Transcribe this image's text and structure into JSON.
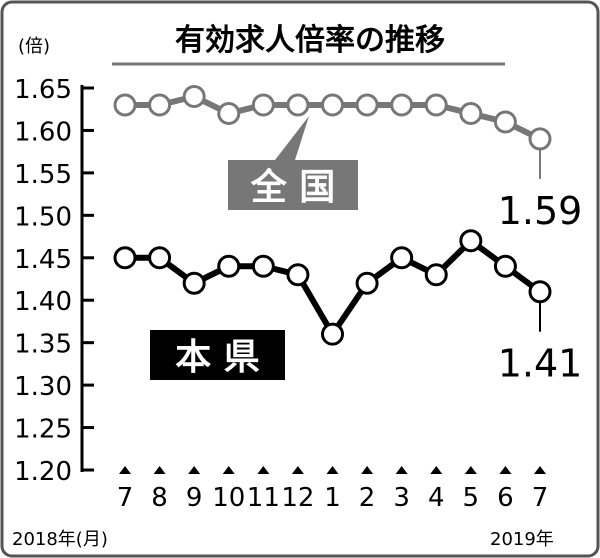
{
  "chart_data": {
    "type": "line",
    "title": "有効求人倍率の推移",
    "ylabel": "(倍)",
    "ylim": [
      1.2,
      1.65
    ],
    "yticks": [
      "1.20",
      "1.25",
      "1.30",
      "1.35",
      "1.40",
      "1.45",
      "1.50",
      "1.55",
      "1.60",
      "1.65"
    ],
    "categories": [
      "7",
      "8",
      "9",
      "10",
      "11",
      "12",
      "1",
      "2",
      "3",
      "4",
      "5",
      "6",
      "7"
    ],
    "xlabel_start": "2018年(月)",
    "xlabel_end": "2019年",
    "grid": false,
    "series": [
      {
        "name": "全 国",
        "color": "#777777",
        "values": [
          1.63,
          1.63,
          1.64,
          1.62,
          1.63,
          1.63,
          1.63,
          1.63,
          1.63,
          1.63,
          1.62,
          1.61,
          1.59
        ],
        "end_label": "1.59"
      },
      {
        "name": "本 県",
        "color": "#000000",
        "values": [
          1.45,
          1.45,
          1.42,
          1.44,
          1.44,
          1.43,
          1.36,
          1.42,
          1.45,
          1.43,
          1.47,
          1.44,
          1.41
        ],
        "end_label": "1.41"
      }
    ]
  }
}
